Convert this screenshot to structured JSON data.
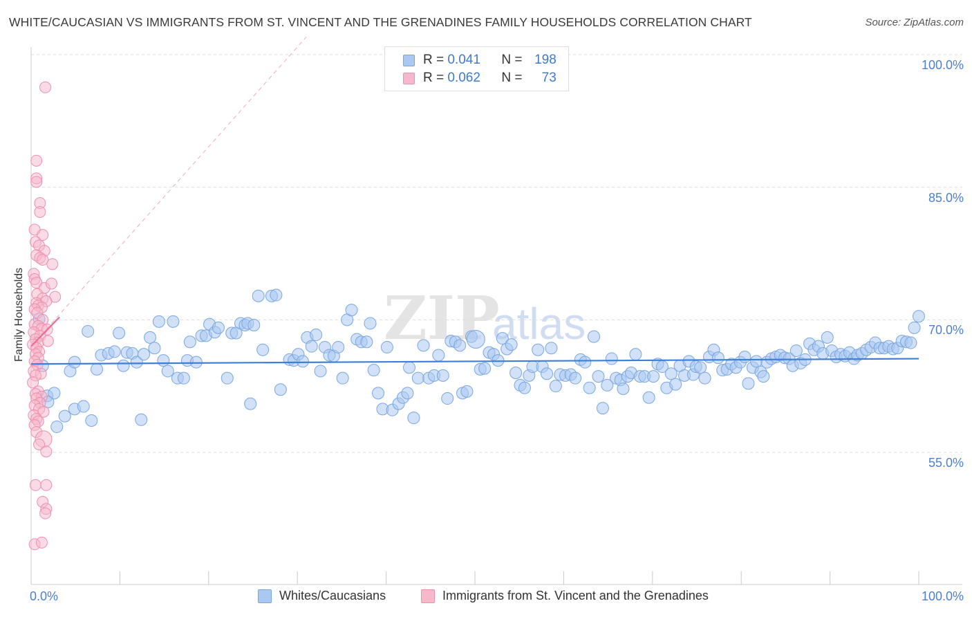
{
  "header": {
    "title": "WHITE/CAUCASIAN VS IMMIGRANTS FROM ST. VINCENT AND THE GRENADINES FAMILY HOUSEHOLDS CORRELATION CHART",
    "source": "Source: ZipAtlas.com"
  },
  "watermark": {
    "zip": "ZIP",
    "atlas": "atlas"
  },
  "legend": {
    "rows": [
      {
        "r_label": "R =",
        "r_value": "0.041",
        "n_label": "N =",
        "n_value": "198"
      },
      {
        "r_label": "R =",
        "r_value": "0.062",
        "n_label": "N =",
        "n_value": "73"
      }
    ]
  },
  "bottom_legend": {
    "series1": "Whites/Caucasians",
    "series2": "Immigrants from St. Vincent and the Grenadines"
  },
  "colors": {
    "blue_fill": "#aac8f2",
    "blue_stroke": "#7aa6e0",
    "blue_line": "#3d7fd8",
    "pink_fill": "#f6b8cb",
    "pink_stroke": "#ee8fab",
    "pink_line": "#ee6a92",
    "accent_text": "#4a7fd4",
    "grid": "#dedede"
  },
  "chart_data": {
    "type": "scatter",
    "title": "WHITE/CAUCASIAN VS IMMIGRANTS FROM ST. VINCENT AND THE GRENADINES FAMILY HOUSEHOLDS CORRELATION CHART",
    "xlabel": "",
    "ylabel": "Family Households",
    "xlim": [
      0,
      100
    ],
    "ylim": [
      40,
      103
    ],
    "y_ticks": [
      {
        "value": 55,
        "label": "55.0%"
      },
      {
        "value": 70,
        "label": "70.0%"
      },
      {
        "value": 85,
        "label": "85.0%"
      },
      {
        "value": 100,
        "label": "100.0%"
      }
    ],
    "x_tick_labels": [
      {
        "value": 0,
        "label": "0.0%"
      },
      {
        "value": 100,
        "label": "100.0%"
      }
    ],
    "x_minor_ticks": [
      0,
      10,
      20,
      30,
      40,
      50,
      60,
      70,
      80,
      90,
      100
    ],
    "grid": true,
    "series": [
      {
        "name": "Whites/Caucasians",
        "R": 0.041,
        "N": 198,
        "trend": {
          "x": [
            0,
            100
          ],
          "y": [
            65.0,
            65.6
          ]
        },
        "points": [
          [
            0.9,
            70.1
          ],
          [
            1.3,
            64.8
          ],
          [
            1.8,
            61.4
          ],
          [
            2.6,
            61.7
          ],
          [
            1.9,
            60.7
          ],
          [
            2.9,
            57.9
          ],
          [
            3.8,
            59.1
          ],
          [
            4.4,
            64.2
          ],
          [
            4.9,
            65.2
          ],
          [
            4.9,
            59.9
          ],
          [
            5.9,
            60.2
          ],
          [
            6.4,
            68.7
          ],
          [
            6.8,
            58.6
          ],
          [
            7.4,
            64.4
          ],
          [
            7.9,
            66.0
          ],
          [
            8.7,
            66.2
          ],
          [
            9.4,
            66.4
          ],
          [
            9.9,
            68.5
          ],
          [
            10.4,
            64.8
          ],
          [
            10.8,
            66.3
          ],
          [
            11.4,
            66.2
          ],
          [
            11.9,
            65.2
          ],
          [
            12.4,
            58.7
          ],
          [
            12.7,
            66.1
          ],
          [
            13.4,
            68.0
          ],
          [
            13.9,
            66.8
          ],
          [
            14.4,
            69.8
          ],
          [
            14.9,
            65.4
          ],
          [
            15.4,
            64.2
          ],
          [
            16.0,
            69.8
          ],
          [
            16.5,
            63.4
          ],
          [
            17.2,
            63.4
          ],
          [
            17.6,
            65.4
          ],
          [
            17.9,
            67.5
          ],
          [
            18.6,
            65.2
          ],
          [
            19.2,
            68.2
          ],
          [
            19.7,
            68.2
          ],
          [
            20.1,
            69.5
          ],
          [
            20.7,
            68.6
          ],
          [
            21.1,
            69.1
          ],
          [
            22.1,
            63.4
          ],
          [
            22.6,
            68.5
          ],
          [
            23.1,
            68.5
          ],
          [
            23.6,
            69.6
          ],
          [
            24.1,
            69.4
          ],
          [
            24.4,
            69.6
          ],
          [
            24.7,
            60.5
          ],
          [
            25.1,
            69.4
          ],
          [
            25.6,
            72.7
          ],
          [
            26.1,
            66.6
          ],
          [
            27.1,
            72.7
          ],
          [
            27.6,
            72.8
          ],
          [
            28.1,
            62.1
          ],
          [
            29.1,
            65.5
          ],
          [
            29.6,
            65.4
          ],
          [
            30.1,
            66.1
          ],
          [
            30.6,
            65.3
          ],
          [
            31.1,
            68.0
          ],
          [
            31.6,
            67.0
          ],
          [
            32.1,
            68.3
          ],
          [
            32.6,
            64.2
          ],
          [
            33.1,
            66.9
          ],
          [
            33.6,
            66.0
          ],
          [
            34.1,
            65.9
          ],
          [
            34.6,
            66.9
          ],
          [
            35.1,
            63.4
          ],
          [
            35.6,
            70.0
          ],
          [
            36.1,
            71.1
          ],
          [
            36.7,
            67.8
          ],
          [
            37.2,
            67.5
          ],
          [
            37.8,
            67.5
          ],
          [
            38.2,
            69.6
          ],
          [
            38.6,
            64.3
          ],
          [
            39.1,
            61.7
          ],
          [
            39.6,
            59.9
          ],
          [
            40.1,
            66.9
          ],
          [
            40.7,
            59.8
          ],
          [
            41.4,
            60.5
          ],
          [
            41.9,
            61.2
          ],
          [
            42.4,
            61.7
          ],
          [
            42.6,
            64.6
          ],
          [
            43.1,
            58.9
          ],
          [
            43.6,
            63.4
          ],
          [
            44.2,
            67.1
          ],
          [
            44.8,
            63.4
          ],
          [
            45.4,
            63.7
          ],
          [
            45.9,
            66.0
          ],
          [
            46.4,
            63.7
          ],
          [
            46.9,
            61.1
          ],
          [
            47.3,
            67.6
          ],
          [
            47.8,
            67.5
          ],
          [
            48.3,
            67.1
          ],
          [
            48.6,
            61.7
          ],
          [
            49.1,
            61.9
          ],
          [
            49.6,
            68.1
          ],
          [
            50.1,
            67.8
          ],
          [
            50.6,
            64.4
          ],
          [
            51.1,
            64.5
          ],
          [
            51.6,
            66.3
          ],
          [
            52.1,
            66.1
          ],
          [
            52.6,
            65.4
          ],
          [
            53.1,
            67.9
          ],
          [
            53.6,
            66.7
          ],
          [
            54.1,
            67.2
          ],
          [
            54.6,
            64.0
          ],
          [
            55.1,
            62.6
          ],
          [
            55.6,
            62.3
          ],
          [
            56.1,
            63.7
          ],
          [
            56.5,
            64.7
          ],
          [
            57.1,
            66.6
          ],
          [
            57.6,
            64.7
          ],
          [
            58.1,
            63.9
          ],
          [
            58.6,
            66.8
          ],
          [
            59.1,
            62.5
          ],
          [
            59.6,
            63.8
          ],
          [
            60.2,
            63.7
          ],
          [
            60.8,
            63.8
          ],
          [
            61.3,
            63.4
          ],
          [
            61.9,
            65.5
          ],
          [
            62.4,
            65.2
          ],
          [
            62.9,
            62.3
          ],
          [
            63.4,
            68.1
          ],
          [
            63.9,
            63.6
          ],
          [
            64.4,
            60.0
          ],
          [
            64.9,
            62.6
          ],
          [
            65.4,
            65.6
          ],
          [
            65.9,
            63.4
          ],
          [
            66.4,
            63.2
          ],
          [
            66.7,
            62.2
          ],
          [
            67.2,
            63.6
          ],
          [
            67.6,
            64.0
          ],
          [
            68.1,
            66.1
          ],
          [
            68.6,
            63.6
          ],
          [
            69.1,
            63.6
          ],
          [
            69.6,
            61.2
          ],
          [
            70.1,
            63.6
          ],
          [
            70.6,
            65.0
          ],
          [
            71.1,
            64.7
          ],
          [
            71.6,
            62.3
          ],
          [
            72.1,
            63.9
          ],
          [
            72.6,
            62.7
          ],
          [
            73.1,
            64.8
          ],
          [
            73.6,
            63.7
          ],
          [
            74.1,
            65.3
          ],
          [
            74.6,
            63.8
          ],
          [
            74.9,
            64.7
          ],
          [
            75.4,
            64.6
          ],
          [
            75.9,
            63.4
          ],
          [
            76.4,
            65.8
          ],
          [
            76.9,
            66.6
          ],
          [
            77.4,
            65.7
          ],
          [
            77.9,
            64.3
          ],
          [
            78.4,
            64.4
          ],
          [
            78.9,
            65.0
          ],
          [
            79.4,
            64.6
          ],
          [
            79.9,
            65.2
          ],
          [
            80.4,
            65.8
          ],
          [
            80.8,
            62.8
          ],
          [
            81.3,
            64.6
          ],
          [
            81.7,
            65.3
          ],
          [
            82.2,
            64.1
          ],
          [
            82.5,
            63.6
          ],
          [
            82.9,
            65.2
          ],
          [
            83.4,
            65.6
          ],
          [
            83.9,
            65.8
          ],
          [
            84.4,
            66.0
          ],
          [
            84.9,
            65.7
          ],
          [
            85.4,
            65.6
          ],
          [
            85.8,
            64.8
          ],
          [
            86.2,
            66.5
          ],
          [
            86.7,
            65.1
          ],
          [
            87.2,
            65.5
          ],
          [
            87.7,
            67.3
          ],
          [
            88.2,
            66.6
          ],
          [
            88.7,
            67.0
          ],
          [
            89.2,
            66.2
          ],
          [
            89.7,
            68.0
          ],
          [
            90.2,
            66.5
          ],
          [
            90.7,
            65.8
          ],
          [
            91.2,
            66.1
          ],
          [
            91.7,
            65.9
          ],
          [
            92.2,
            66.3
          ],
          [
            92.7,
            65.6
          ],
          [
            93.1,
            66.0
          ],
          [
            93.6,
            66.2
          ],
          [
            94.1,
            66.6
          ],
          [
            94.6,
            66.9
          ],
          [
            95.1,
            67.4
          ],
          [
            95.6,
            66.8
          ],
          [
            96.1,
            66.8
          ],
          [
            96.6,
            67.0
          ],
          [
            97.1,
            66.7
          ],
          [
            97.6,
            66.8
          ],
          [
            98.1,
            67.6
          ],
          [
            98.6,
            67.5
          ],
          [
            99.1,
            67.4
          ],
          [
            99.5,
            69.1
          ],
          [
            100.0,
            70.4
          ]
        ]
      },
      {
        "name": "Immigrants from St. Vincent and the Grenadines",
        "R": 0.062,
        "N": 73,
        "trend": {
          "x": [
            0,
            3.2
          ],
          "y": [
            67.0,
            70.3
          ]
        },
        "points": [
          [
            1.6,
            96.3
          ],
          [
            0.6,
            88.0
          ],
          [
            0.6,
            86.0
          ],
          [
            0.6,
            85.6
          ],
          [
            1.0,
            83.2
          ],
          [
            1.0,
            82.2
          ],
          [
            0.4,
            80.2
          ],
          [
            1.3,
            79.6
          ],
          [
            0.5,
            78.8
          ],
          [
            0.9,
            78.4
          ],
          [
            1.5,
            77.8
          ],
          [
            0.6,
            77.3
          ],
          [
            1.0,
            77.0
          ],
          [
            1.3,
            76.8
          ],
          [
            2.4,
            76.3
          ],
          [
            0.3,
            75.2
          ],
          [
            0.4,
            74.6
          ],
          [
            0.6,
            74.2
          ],
          [
            1.5,
            73.6
          ],
          [
            2.3,
            74.1
          ],
          [
            0.7,
            72.9
          ],
          [
            2.7,
            72.6
          ],
          [
            1.3,
            72.4
          ],
          [
            1.7,
            72.1
          ],
          [
            0.6,
            71.9
          ],
          [
            0.8,
            71.6
          ],
          [
            1.2,
            71.4
          ],
          [
            0.4,
            71.2
          ],
          [
            0.7,
            70.8
          ],
          [
            1.3,
            70.0
          ],
          [
            0.4,
            69.5
          ],
          [
            0.8,
            69.3
          ],
          [
            1.2,
            69.0
          ],
          [
            1.8,
            68.9
          ],
          [
            0.3,
            68.6
          ],
          [
            1.0,
            68.2
          ],
          [
            0.5,
            67.8
          ],
          [
            0.8,
            67.4
          ],
          [
            0.2,
            67.2
          ],
          [
            1.9,
            67.6
          ],
          [
            0.6,
            66.8
          ],
          [
            0.9,
            66.4
          ],
          [
            0.5,
            66.1
          ],
          [
            0.8,
            65.7
          ],
          [
            0.4,
            65.3
          ],
          [
            0.7,
            64.9
          ],
          [
            0.3,
            64.2
          ],
          [
            1.1,
            63.9
          ],
          [
            0.5,
            63.7
          ],
          [
            0.2,
            62.9
          ],
          [
            0.8,
            61.9
          ],
          [
            0.5,
            61.6
          ],
          [
            1.2,
            61.3
          ],
          [
            0.6,
            61.1
          ],
          [
            1.0,
            60.6
          ],
          [
            0.4,
            60.3
          ],
          [
            0.9,
            59.9
          ],
          [
            1.4,
            59.6
          ],
          [
            0.3,
            59.2
          ],
          [
            0.6,
            58.8
          ],
          [
            0.8,
            58.5
          ],
          [
            0.4,
            58.1
          ],
          [
            0.6,
            57.3
          ],
          [
            1.4,
            56.5
          ],
          [
            0.9,
            55.9
          ],
          [
            1.7,
            55.1
          ],
          [
            0.5,
            51.3
          ],
          [
            1.7,
            51.3
          ],
          [
            1.3,
            49.4
          ],
          [
            1.7,
            48.6
          ],
          [
            1.6,
            48.1
          ],
          [
            0.4,
            44.6
          ],
          [
            1.2,
            44.8
          ]
        ]
      }
    ]
  }
}
